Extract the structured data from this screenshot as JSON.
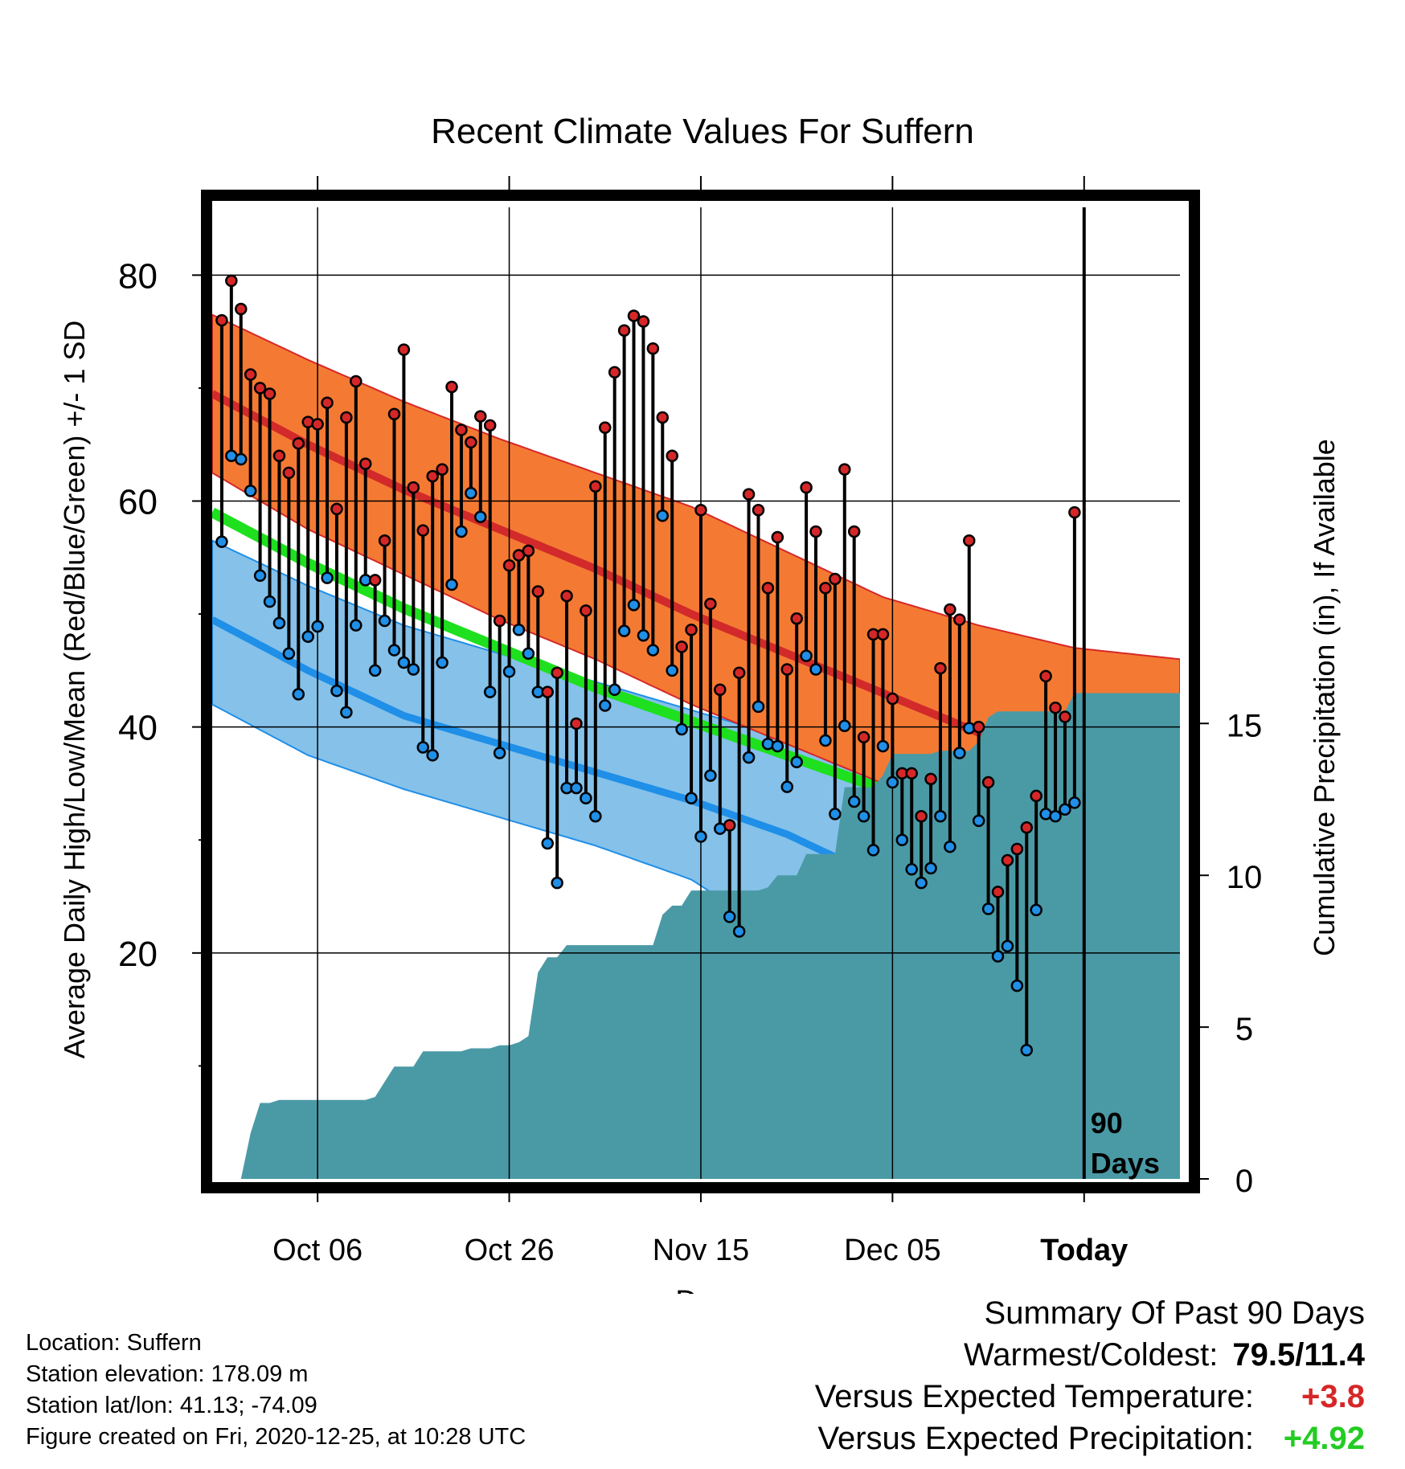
{
  "chart_data": {
    "type": "line",
    "title": "Recent Climate Values For Suffern",
    "xlabel": "Day",
    "ylabel_left": "Average Daily High/Low/Mean (Red/Blue/Green) +/- 1 SD",
    "ylabel_right": "Cumulative Precipitation (in), If Available",
    "x_tick_labels": [
      "Oct 06",
      "Oct 26",
      "Nov 15",
      "Dec 05",
      "Today"
    ],
    "x_tick_days": [
      11,
      31,
      51,
      71,
      91
    ],
    "xlim_days": [
      0,
      101
    ],
    "ylim_temp": [
      0,
      86
    ],
    "y_ticks_temp": [
      20,
      40,
      60,
      80
    ],
    "ylim_precip": [
      0,
      32
    ],
    "y_ticks_precip": [
      0,
      5,
      10,
      15
    ],
    "today_marker_label": [
      "90",
      "Days"
    ],
    "grid": true,
    "normals": {
      "days": [
        0,
        10,
        20,
        30,
        40,
        50,
        60,
        70,
        80,
        90,
        101
      ],
      "high_mean": [
        69.5,
        65.0,
        61.0,
        57.5,
        54.0,
        50.0,
        46.5,
        43.0,
        39.5,
        37.0,
        35.8
      ],
      "high_upper": [
        76.5,
        72.5,
        68.8,
        65.5,
        62.5,
        59.5,
        55.5,
        51.5,
        49.0,
        47.0,
        46.0
      ],
      "high_lower": [
        62.5,
        57.5,
        53.5,
        49.5,
        46.0,
        42.0,
        38.5,
        35.0,
        31.0,
        28.5,
        28.3
      ],
      "mean": [
        59.0,
        54.5,
        50.5,
        47.0,
        43.5,
        40.5,
        37.5,
        34.5,
        31.5,
        29.5,
        28.8
      ],
      "low_mean": [
        49.5,
        45.0,
        41.0,
        38.5,
        36.0,
        33.5,
        30.5,
        26.5,
        24.0,
        22.5,
        22.0
      ],
      "low_upper": [
        56.5,
        52.5,
        49.0,
        46.5,
        44.0,
        41.5,
        39.0,
        35.5,
        32.0,
        30.0,
        29.5
      ],
      "low_lower": [
        42.0,
        37.5,
        34.5,
        32.0,
        29.5,
        26.5,
        21.0,
        14.5,
        12.0,
        11.0,
        10.5
      ]
    },
    "series": [
      {
        "name": "High",
        "color": "#d62728",
        "values": [
          76.0,
          79.5,
          77.0,
          71.2,
          70.0,
          69.5,
          64.0,
          62.5,
          65.1,
          67.0,
          66.8,
          68.7,
          59.3,
          67.4,
          70.6,
          63.3,
          53.0,
          56.5,
          67.7,
          73.4,
          61.2,
          57.4,
          62.2,
          62.8,
          70.1,
          66.3,
          65.2,
          67.5,
          66.7,
          49.4,
          54.3,
          55.2,
          55.6,
          52.0,
          43.1,
          44.8,
          51.6,
          40.3,
          50.3,
          61.3,
          66.5,
          71.4,
          75.1,
          76.4,
          75.9,
          73.5,
          67.4,
          64.0,
          47.1,
          48.6,
          59.2,
          50.9,
          43.3,
          31.3,
          44.8,
          60.6,
          59.2,
          52.3,
          56.8,
          45.1,
          49.6,
          61.2,
          57.3,
          52.3,
          53.1,
          62.8,
          57.3,
          39.1,
          48.2,
          48.2,
          42.5,
          35.9,
          35.9,
          32.1,
          35.4,
          45.2,
          50.4,
          49.5,
          56.5,
          40.0,
          35.1,
          25.4,
          28.2,
          29.2,
          31.1,
          33.9,
          44.5,
          41.7,
          40.9,
          59.0
        ]
      },
      {
        "name": "Low",
        "color": "#1f8fe8",
        "values": [
          56.4,
          64.0,
          63.7,
          60.9,
          53.4,
          51.1,
          49.2,
          46.5,
          42.9,
          48.0,
          48.9,
          53.2,
          43.2,
          41.3,
          49.0,
          53.0,
          45.0,
          49.4,
          46.8,
          45.7,
          45.1,
          38.2,
          37.5,
          45.7,
          52.6,
          57.3,
          60.7,
          58.6,
          43.1,
          37.7,
          44.9,
          48.6,
          46.5,
          43.1,
          29.7,
          26.2,
          34.6,
          34.6,
          33.7,
          32.1,
          41.9,
          43.3,
          48.5,
          50.8,
          48.1,
          46.8,
          58.7,
          45.0,
          39.8,
          33.7,
          30.3,
          35.7,
          31.0,
          23.2,
          21.9,
          37.3,
          41.8,
          38.5,
          38.3,
          34.7,
          36.9,
          46.3,
          45.1,
          38.8,
          32.3,
          40.1,
          33.4,
          32.1,
          29.1,
          38.3,
          35.1,
          30.0,
          27.4,
          26.2,
          27.5,
          32.1,
          29.4,
          37.7,
          39.9,
          31.7,
          23.9,
          19.7,
          20.6,
          17.1,
          11.4,
          23.8,
          32.3,
          32.1,
          32.7,
          33.3
        ]
      },
      {
        "name": "Cumulative Precipitation",
        "color": "#4a9aa6",
        "values": [
          0.0,
          0.0,
          0.0,
          1.5,
          2.5,
          2.5,
          2.6,
          2.6,
          2.6,
          2.6,
          2.6,
          2.6,
          2.6,
          2.6,
          2.6,
          2.6,
          2.7,
          3.2,
          3.7,
          3.7,
          3.7,
          4.2,
          4.2,
          4.2,
          4.2,
          4.2,
          4.3,
          4.3,
          4.3,
          4.4,
          4.4,
          4.5,
          4.7,
          6.8,
          7.3,
          7.3,
          7.7,
          7.7,
          7.7,
          7.7,
          7.7,
          7.7,
          7.7,
          7.7,
          7.7,
          7.7,
          8.7,
          9.0,
          9.0,
          9.5,
          9.5,
          9.5,
          9.5,
          9.5,
          9.5,
          9.5,
          9.5,
          9.6,
          10.0,
          10.0,
          10.0,
          10.7,
          10.7,
          10.7,
          10.7,
          12.9,
          12.9,
          12.9,
          12.9,
          13.3,
          14.0,
          14.0,
          14.0,
          14.0,
          14.0,
          14.1,
          14.1,
          14.1,
          14.1,
          14.4,
          15.2,
          15.4,
          15.4,
          15.4,
          15.4,
          15.4,
          15.4,
          15.4,
          15.4,
          16.0,
          16.0
        ]
      }
    ]
  },
  "metadata": {
    "location": "Location: Suffern",
    "elevation": "Station elevation: 178.09 m",
    "latlon": "Station lat/lon: 41.13; -74.09",
    "created": "Figure created on Fri, 2020-12-25, at 10:28 UTC"
  },
  "summary": {
    "title": "Summary Of Past 90 Days",
    "warmest_label": "Warmest/Coldest:",
    "warmest_value": "79.5/11.4",
    "temp_label": "Versus Expected Temperature:",
    "temp_value": "+3.8",
    "temp_color": "#d62728",
    "precip_label": "Versus Expected Precipitation:",
    "precip_value": "+4.92",
    "precip_color": "#22cc22"
  }
}
